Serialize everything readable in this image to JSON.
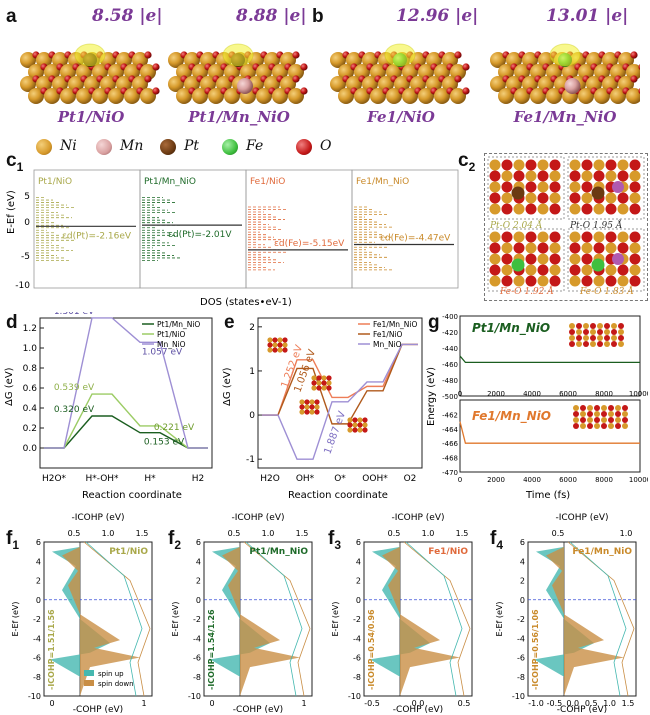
{
  "panels": {
    "a": "a",
    "b": "b",
    "c1": "c",
    "c1_sub": "1",
    "c2": "c",
    "c2_sub": "2",
    "d": "d",
    "e": "e",
    "g": "g",
    "f1": "f",
    "f1_sub": "1",
    "f2": "f",
    "f2_sub": "2",
    "f3": "f",
    "f3_sub": "3",
    "f4": "f",
    "f4_sub": "4"
  },
  "top": {
    "charges": [
      "8.58 |e|",
      "8.88 |e|",
      "12.96 |e|",
      "13.01 |e|"
    ],
    "captions": [
      "Pt1/NiO",
      "Pt1/Mn_NiO",
      "Fe1/NiO",
      "Fe1/Mn_NiO"
    ]
  },
  "atoms": [
    {
      "name": "Ni",
      "color": "#d79a2b"
    },
    {
      "name": "Mn",
      "color": "#d9a0a0"
    },
    {
      "name": "Pt",
      "color": "#6b3a12"
    },
    {
      "name": "Fe",
      "color": "#3fbf3f"
    },
    {
      "name": "O",
      "color": "#c41818"
    }
  ],
  "c1": {
    "ylabel": "E-Ef (eV)",
    "xlabel": "DOS (states•eV-1)",
    "yticks": [
      "5",
      "0",
      "-5",
      "-10"
    ],
    "panels": [
      {
        "title": "Pt1/NiO",
        "center": "εd(Pt)=-2.16eV",
        "color": "#a9a84a"
      },
      {
        "title": "Pt1/Mn_NiO",
        "center": "εd(Pt)=-2.01V",
        "color": "#1f6b2a"
      },
      {
        "title": "Fe1/NiO",
        "center": "εd(Fe)=-5.15eV",
        "color": "#e06a3c"
      },
      {
        "title": "Fe1/Mn_NiO",
        "center": "εd(Fe)=-4.47eV",
        "color": "#c98a2a"
      }
    ]
  },
  "c2": {
    "labels": [
      "Pt-O 2.04 Å",
      "Pt-O 1.95 Å",
      "Fe-O 1.92 Å",
      "Fe-O 1.83 Å"
    ]
  },
  "chart_data": [
    {
      "type": "line",
      "panel": "d",
      "xlabel": "Reaction coordinate",
      "ylabel": "ΔG (eV)",
      "categories": [
        "H2O*",
        "H*-OH*",
        "H*",
        "H2"
      ],
      "ylim": [
        -0.2,
        1.3
      ],
      "yticks": [
        "0.0",
        "0.2",
        "0.4",
        "0.6",
        "0.8",
        "1.0",
        "1.2"
      ],
      "series": [
        {
          "name": "Pt1/Mn_NiO",
          "color": "#1b5e20",
          "values": [
            0,
            0.32,
            0.153,
            0
          ]
        },
        {
          "name": "Pt1/NiO",
          "color": "#9ccc65",
          "values": [
            0,
            0.539,
            0.221,
            0
          ]
        },
        {
          "name": "Mn_NiO",
          "color": "#9e8fd4",
          "values": [
            0,
            1.301,
            1.057,
            0
          ]
        }
      ],
      "annotations": [
        "1.301 eV",
        "1.057 eV",
        "0.539 eV",
        "0.320 eV",
        "0.221 eV",
        "0.153 eV"
      ]
    },
    {
      "type": "line",
      "panel": "e",
      "xlabel": "Reaction coordinate",
      "ylabel": "ΔG (eV)",
      "categories": [
        "H2O",
        "OH*",
        "O*",
        "OOH*",
        "O2"
      ],
      "ylim": [
        -1.2,
        2.2
      ],
      "yticks": [
        "-1",
        "0",
        "1",
        "2"
      ],
      "series": [
        {
          "name": "Fe1/Mn_NiO",
          "color": "#ee7d57",
          "values": [
            0,
            1.252,
            0.4,
            0.65,
            1.6
          ]
        },
        {
          "name": "Fe1/NiO",
          "color": "#b05a1c",
          "values": [
            0,
            1.056,
            -0.2,
            0.55,
            1.6
          ]
        },
        {
          "name": "Mn_NiO",
          "color": "#9e8fd4",
          "values": [
            0,
            -1.0,
            0.3,
            0.75,
            1.6
          ]
        }
      ],
      "annotations": [
        "1.252 eV",
        "1.056 eV",
        "1.887 eV"
      ]
    },
    {
      "type": "line",
      "panel": "g-top",
      "title": "Pt1/Mn_NiO",
      "ylabel": "Energy (eV)",
      "yticks": [
        "-400",
        "-420",
        "-440",
        "-460",
        "-480",
        "-500"
      ],
      "xticks": [
        "0",
        "2000",
        "4000",
        "6000",
        "8000",
        "10000"
      ],
      "ylim": [
        -500,
        -400
      ],
      "series": [
        {
          "name": "Pt1/Mn_NiO",
          "color": "#1b5e20",
          "values": [
            -450,
            -458,
            -458
          ]
        }
      ]
    },
    {
      "type": "line",
      "panel": "g-bottom",
      "title": "Fe1/Mn_NiO",
      "ylabel": "Energy (eV)",
      "xlabel": "Time (fs)",
      "yticks": [
        "-462",
        "-464",
        "-466",
        "-468",
        "-470"
      ],
      "xticks": [
        "0",
        "2000",
        "4000",
        "6000",
        "8000",
        "10000"
      ],
      "ylim": [
        -470,
        -460
      ],
      "series": [
        {
          "name": "Fe1/Mn_NiO",
          "color": "#e0782d",
          "values": [
            -463,
            -466,
            -466
          ]
        }
      ]
    }
  ],
  "f": {
    "top_axis": "-ICOHP (eV)",
    "bottom_axis": "-COHP (eV)",
    "ylabel": "E-Ef (eV)",
    "yticks": [
      "6",
      "4",
      "2",
      "0",
      "-2",
      "-4",
      "-6",
      "-8",
      "-10"
    ],
    "legend": [
      "spin up",
      "spin down"
    ],
    "colors": {
      "up": "#45b8b0",
      "down": "#c98e45"
    },
    "panels": [
      {
        "title": "Pt1/NiO",
        "icohp": "-ICOHP=1.51/1.56",
        "tcolor": "#a9a84a",
        "icolor": "#a9a84a",
        "top": [
          "0.5",
          "1.0",
          "1.5"
        ],
        "bottom": [
          "0",
          "1"
        ]
      },
      {
        "title": "Pt1/Mn_NiO",
        "icohp": "-ICOHP=1.54/1.26",
        "tcolor": "#1f6b2a",
        "icolor": "#1f6b2a",
        "top": [
          "0.5",
          "1.0",
          "1.5"
        ],
        "bottom": [
          "0",
          "1"
        ]
      },
      {
        "title": "Fe1/NiO",
        "icohp": "-ICOHP=0.54/0.96",
        "tcolor": "#e06a3c",
        "icolor": "#c98a2a",
        "top": [
          "0.5",
          "1.0",
          "1.5"
        ],
        "bottom": [
          "-0.5",
          "0.0",
          "0.5"
        ]
      },
      {
        "title": "Fe1/Mn_NiO",
        "icohp": "-ICOHP=0.56/1.06",
        "tcolor": "#c98a2a",
        "icolor": "#c98a2a",
        "top": [
          "0.5",
          "1.0"
        ],
        "bottom": [
          "-1.0",
          "-0.5",
          "0.0",
          "0.5",
          "1.0",
          "1.5"
        ]
      }
    ]
  }
}
